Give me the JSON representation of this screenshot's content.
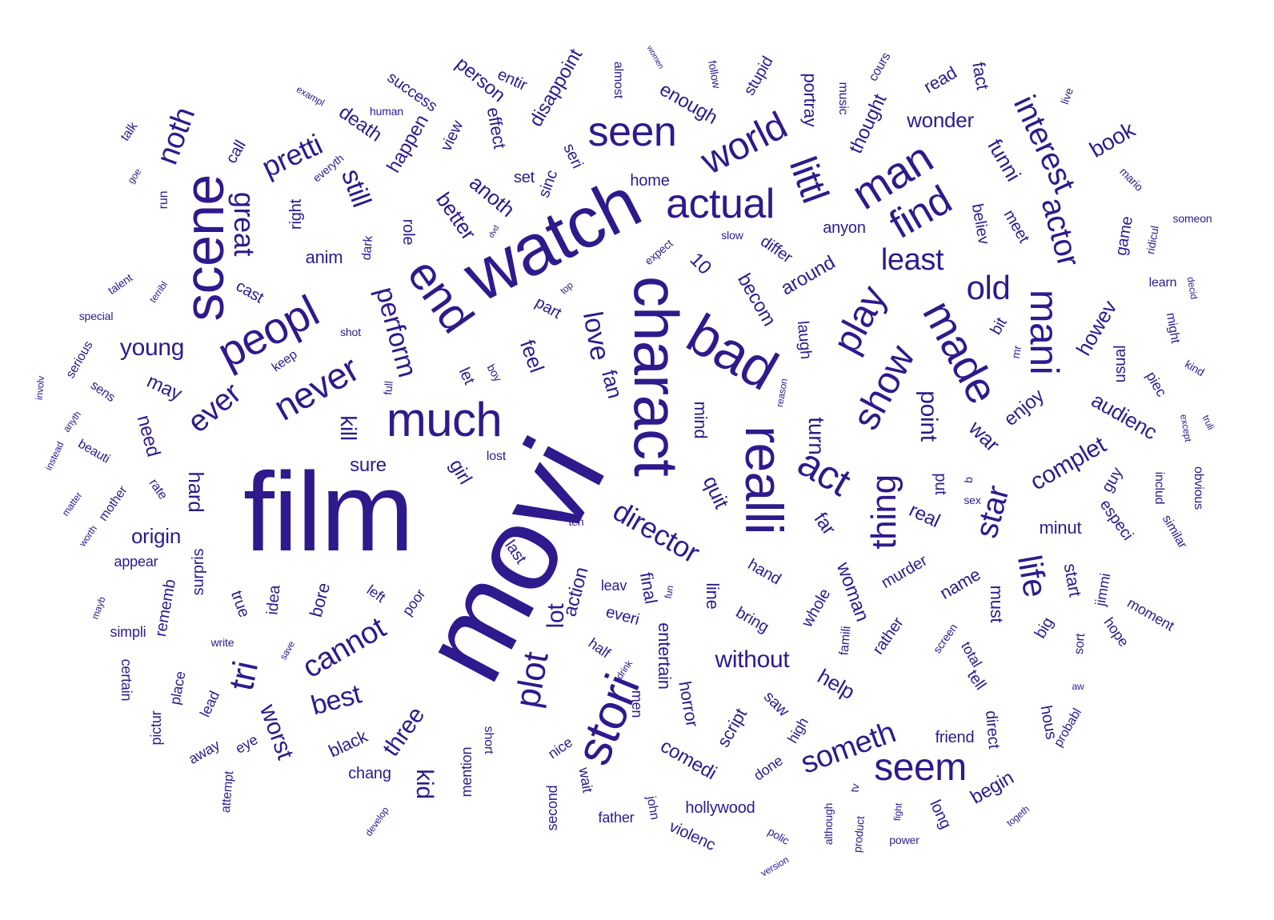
{
  "colors": {
    "word": "#2e1a8c",
    "background": "#ffffff"
  },
  "words": [
    {
      "t": "movi"
    },
    {
      "t": "film"
    },
    {
      "t": "watch"
    },
    {
      "t": "charact"
    },
    {
      "t": "scene"
    },
    {
      "t": "bad"
    },
    {
      "t": "realli"
    },
    {
      "t": "much"
    },
    {
      "t": "stori"
    },
    {
      "t": "end"
    },
    {
      "t": "peopl"
    },
    {
      "t": "made"
    },
    {
      "t": "man"
    },
    {
      "t": "seen"
    },
    {
      "t": "actual"
    },
    {
      "t": "littl"
    },
    {
      "t": "find"
    },
    {
      "t": "world"
    },
    {
      "t": "mani"
    },
    {
      "t": "play"
    },
    {
      "t": "show"
    },
    {
      "t": "act"
    },
    {
      "t": "never"
    },
    {
      "t": "tri"
    },
    {
      "t": "plot"
    },
    {
      "t": "seem"
    },
    {
      "t": "thing"
    },
    {
      "t": "interest"
    },
    {
      "t": "actor"
    },
    {
      "t": "old"
    },
    {
      "t": "life"
    },
    {
      "t": "star"
    },
    {
      "t": "least"
    },
    {
      "t": "cannot"
    },
    {
      "t": "someth"
    },
    {
      "t": "noth"
    },
    {
      "t": "pretti"
    },
    {
      "t": "great"
    },
    {
      "t": "still"
    },
    {
      "t": "ever"
    },
    {
      "t": "perform"
    },
    {
      "t": "love"
    },
    {
      "t": "director"
    },
    {
      "t": "best"
    },
    {
      "t": "worst"
    },
    {
      "t": "young"
    },
    {
      "t": "lot"
    },
    {
      "t": "kid"
    },
    {
      "t": "three"
    },
    {
      "t": "without"
    },
    {
      "t": "book"
    },
    {
      "t": "funni"
    },
    {
      "t": "wonder"
    },
    {
      "t": "better"
    },
    {
      "t": "anoth"
    },
    {
      "t": "feel"
    },
    {
      "t": "fan"
    },
    {
      "t": "kill"
    },
    {
      "t": "point"
    },
    {
      "t": "turn"
    },
    {
      "t": "complet"
    },
    {
      "t": "quit"
    },
    {
      "t": "war"
    },
    {
      "t": "origin"
    },
    {
      "t": "howev"
    },
    {
      "t": "audienc"
    },
    {
      "t": "enjoy"
    },
    {
      "t": "real"
    },
    {
      "t": "woman"
    },
    {
      "t": "help"
    },
    {
      "t": "hard"
    },
    {
      "t": "girl"
    },
    {
      "t": "may"
    },
    {
      "t": "need"
    },
    {
      "t": "sure"
    },
    {
      "t": "around"
    },
    {
      "t": "becom"
    },
    {
      "t": "10"
    },
    {
      "t": "action"
    },
    {
      "t": "comedi"
    },
    {
      "t": "begin"
    },
    {
      "t": "far"
    },
    {
      "t": "mind"
    },
    {
      "t": "death"
    },
    {
      "t": "happen"
    },
    {
      "t": "person"
    },
    {
      "t": "disappoint"
    },
    {
      "t": "effect"
    },
    {
      "t": "enough"
    },
    {
      "t": "thought"
    },
    {
      "t": "read"
    },
    {
      "t": "fact"
    },
    {
      "t": "portray"
    },
    {
      "t": "stupid"
    },
    {
      "t": "success"
    },
    {
      "t": "entir"
    },
    {
      "t": "set"
    },
    {
      "t": "seri"
    },
    {
      "t": "sinc"
    },
    {
      "t": "view"
    },
    {
      "t": "call"
    },
    {
      "t": "right"
    },
    {
      "t": "role"
    },
    {
      "t": "anim"
    },
    {
      "t": "cast"
    },
    {
      "t": "let"
    },
    {
      "t": "home"
    },
    {
      "t": "differ"
    },
    {
      "t": "anyon"
    },
    {
      "t": "believ"
    },
    {
      "t": "meet"
    },
    {
      "t": "game"
    },
    {
      "t": "usual"
    },
    {
      "t": "piec"
    },
    {
      "t": "kind"
    },
    {
      "t": "guy"
    },
    {
      "t": "especi"
    },
    {
      "t": "minut"
    },
    {
      "t": "start"
    },
    {
      "t": "big"
    },
    {
      "t": "must"
    },
    {
      "t": "tell"
    },
    {
      "t": "name"
    },
    {
      "t": "murder"
    },
    {
      "t": "rather"
    },
    {
      "t": "put"
    },
    {
      "t": "whole"
    },
    {
      "t": "laugh"
    },
    {
      "t": "bring"
    },
    {
      "t": "hand"
    },
    {
      "t": "line"
    },
    {
      "t": "final"
    },
    {
      "t": "everi"
    },
    {
      "t": "entertain"
    },
    {
      "t": "horror"
    },
    {
      "t": "script"
    },
    {
      "t": "saw"
    },
    {
      "t": "high"
    },
    {
      "t": "done"
    },
    {
      "t": "hollywood"
    },
    {
      "t": "violenc"
    },
    {
      "t": "john"
    },
    {
      "t": "father"
    },
    {
      "t": "wait"
    },
    {
      "t": "nice"
    },
    {
      "t": "second"
    },
    {
      "t": "mention"
    },
    {
      "t": "short"
    },
    {
      "t": "chang"
    },
    {
      "t": "black"
    },
    {
      "t": "bore"
    },
    {
      "t": "idea"
    },
    {
      "t": "true"
    },
    {
      "t": "surpris"
    },
    {
      "t": "rememb"
    },
    {
      "t": "simpli"
    },
    {
      "t": "appear"
    },
    {
      "t": "certain"
    },
    {
      "t": "pictur"
    },
    {
      "t": "place"
    },
    {
      "t": "lead"
    },
    {
      "t": "away"
    },
    {
      "t": "eye"
    },
    {
      "t": "attempt"
    },
    {
      "t": "write"
    },
    {
      "t": "save"
    },
    {
      "t": "mayb"
    },
    {
      "t": "worth"
    },
    {
      "t": "mother"
    },
    {
      "t": "rate"
    },
    {
      "t": "matter"
    },
    {
      "t": "instead"
    },
    {
      "t": "anyth"
    },
    {
      "t": "involv"
    },
    {
      "t": "beauti"
    },
    {
      "t": "sens"
    },
    {
      "t": "serious"
    },
    {
      "t": "special"
    },
    {
      "t": "talent"
    },
    {
      "t": "terribl"
    },
    {
      "t": "keep"
    },
    {
      "t": "shot"
    },
    {
      "t": "dark"
    },
    {
      "t": "run"
    },
    {
      "t": "goe"
    },
    {
      "t": "talk"
    },
    {
      "t": "exampl"
    },
    {
      "t": "human"
    },
    {
      "t": "everyth"
    },
    {
      "t": "dvd"
    },
    {
      "t": "top"
    },
    {
      "t": "part"
    },
    {
      "t": "expect"
    },
    {
      "t": "slow"
    },
    {
      "t": "almost"
    },
    {
      "t": "women"
    },
    {
      "t": "follow"
    },
    {
      "t": "music"
    },
    {
      "t": "cours"
    },
    {
      "t": "live"
    },
    {
      "t": "mario"
    },
    {
      "t": "someon"
    },
    {
      "t": "ridicul"
    },
    {
      "t": "learn"
    },
    {
      "t": "decid"
    },
    {
      "t": "might"
    },
    {
      "t": "truli"
    },
    {
      "t": "except"
    },
    {
      "t": "obvious"
    },
    {
      "t": "includ"
    },
    {
      "t": "similar"
    },
    {
      "t": "jimmi"
    },
    {
      "t": "moment"
    },
    {
      "t": "hope"
    },
    {
      "t": "sort"
    },
    {
      "t": "total"
    },
    {
      "t": "screen"
    },
    {
      "t": "famili"
    },
    {
      "t": "aw"
    },
    {
      "t": "probabl"
    },
    {
      "t": "hous"
    },
    {
      "t": "direct"
    },
    {
      "t": "friend"
    },
    {
      "t": "long"
    },
    {
      "t": "togeth"
    },
    {
      "t": "power"
    },
    {
      "t": "fight"
    },
    {
      "t": "product"
    },
    {
      "t": "tv"
    },
    {
      "t": "although"
    },
    {
      "t": "polic"
    },
    {
      "t": "version"
    },
    {
      "t": "develop"
    },
    {
      "t": "b"
    },
    {
      "t": "sex"
    },
    {
      "t": "mr"
    },
    {
      "t": "bit"
    },
    {
      "t": "reason"
    },
    {
      "t": "fun"
    },
    {
      "t": "leav"
    },
    {
      "t": "half"
    },
    {
      "t": "drink"
    },
    {
      "t": "men"
    },
    {
      "t": "ten"
    },
    {
      "t": "last"
    },
    {
      "t": "poor"
    },
    {
      "t": "left"
    },
    {
      "t": "lost"
    },
    {
      "t": "full"
    },
    {
      "t": "boy"
    }
  ]
}
